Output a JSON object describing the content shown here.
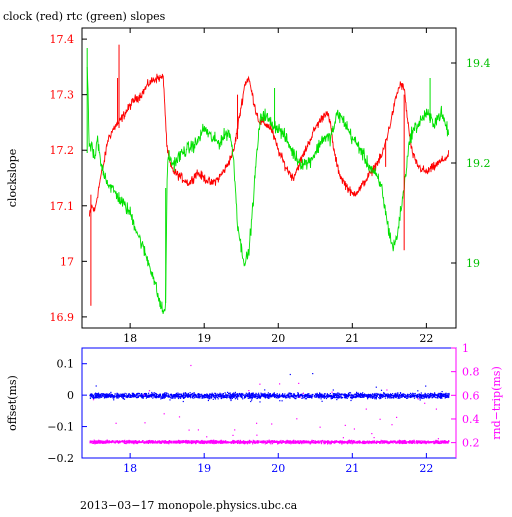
{
  "chart_data": [
    {
      "type": "line",
      "title": "clock (red) rtc (green) slopes",
      "ylabel": "clockslope",
      "xlim": [
        17.35,
        22.4
      ],
      "x_ticks": [
        "18",
        "19",
        "20",
        "21",
        "22"
      ],
      "y_left_lim": [
        16.88,
        17.42
      ],
      "y_left_ticks": [
        "16.9",
        "17",
        "17.1",
        "17.2",
        "17.3",
        "17.4"
      ],
      "y_right_lim": [
        18.87,
        19.47
      ],
      "y_right_ticks": [
        "19",
        "19.2",
        "19.4"
      ],
      "grid": false,
      "series": [
        {
          "name": "clock",
          "color": "#ff0000",
          "axis": "left",
          "x": [
            17.45,
            17.48,
            17.52,
            17.56,
            17.6,
            17.65,
            17.7,
            17.78,
            17.85,
            17.95,
            18.05,
            18.15,
            18.25,
            18.35,
            18.45,
            18.48,
            18.5,
            18.55,
            18.6,
            18.7,
            18.8,
            18.9,
            19.0,
            19.1,
            19.2,
            19.3,
            19.4,
            19.5,
            19.55,
            19.6,
            19.65,
            19.7,
            19.75,
            19.8,
            19.9,
            20.0,
            20.1,
            20.2,
            20.3,
            20.4,
            20.5,
            20.6,
            20.65,
            20.7,
            20.75,
            20.8,
            20.85,
            20.9,
            21.0,
            21.1,
            21.2,
            21.3,
            21.4,
            21.5,
            21.6,
            21.65,
            21.7,
            21.75,
            21.8,
            21.85,
            21.9,
            22.0,
            22.1,
            22.2,
            22.3
          ],
          "y": [
            17.08,
            17.1,
            17.09,
            17.12,
            17.15,
            17.18,
            17.22,
            17.24,
            17.25,
            17.27,
            17.29,
            17.3,
            17.32,
            17.33,
            17.33,
            17.25,
            17.2,
            17.17,
            17.16,
            17.15,
            17.14,
            17.16,
            17.15,
            17.14,
            17.15,
            17.17,
            17.2,
            17.28,
            17.32,
            17.33,
            17.3,
            17.27,
            17.25,
            17.25,
            17.24,
            17.2,
            17.17,
            17.15,
            17.18,
            17.21,
            17.24,
            17.26,
            17.27,
            17.25,
            17.2,
            17.17,
            17.15,
            17.14,
            17.12,
            17.13,
            17.15,
            17.17,
            17.19,
            17.24,
            17.3,
            17.32,
            17.31,
            17.25,
            17.2,
            17.18,
            17.17,
            17.16,
            17.17,
            17.18,
            17.19
          ]
        },
        {
          "name": "rtc",
          "color": "#00e000",
          "axis": "right",
          "x": [
            17.42,
            17.45,
            17.48,
            17.52,
            17.56,
            17.6,
            17.65,
            17.7,
            17.75,
            17.8,
            17.9,
            18.0,
            18.1,
            18.2,
            18.3,
            18.4,
            18.45,
            18.48,
            18.5,
            18.52,
            18.55,
            18.6,
            18.7,
            18.8,
            18.9,
            19.0,
            19.1,
            19.2,
            19.3,
            19.35,
            19.4,
            19.45,
            19.5,
            19.55,
            19.6,
            19.65,
            19.7,
            19.75,
            19.8,
            19.9,
            20.0,
            20.1,
            20.2,
            20.3,
            20.4,
            20.5,
            20.6,
            20.7,
            20.75,
            20.8,
            20.9,
            21.0,
            21.1,
            21.2,
            21.3,
            21.4,
            21.45,
            21.5,
            21.55,
            21.6,
            21.65,
            21.7,
            21.75,
            21.8,
            21.9,
            22.0,
            22.1,
            22.2,
            22.3
          ],
          "y": [
            19.4,
            19.22,
            19.24,
            19.2,
            19.25,
            19.2,
            19.18,
            19.16,
            19.15,
            19.14,
            19.12,
            19.1,
            19.06,
            19.02,
            18.98,
            18.92,
            18.9,
            18.92,
            19.18,
            19.22,
            19.2,
            19.2,
            19.22,
            19.23,
            19.24,
            19.27,
            19.25,
            19.24,
            19.26,
            19.26,
            19.2,
            19.08,
            19.03,
            19.0,
            19.02,
            19.1,
            19.2,
            19.28,
            19.3,
            19.28,
            19.27,
            19.25,
            19.22,
            19.2,
            19.2,
            19.22,
            19.25,
            19.25,
            19.27,
            19.3,
            19.28,
            19.25,
            19.23,
            19.2,
            19.18,
            19.15,
            19.1,
            19.06,
            19.03,
            19.05,
            19.1,
            19.15,
            19.22,
            19.26,
            19.28,
            19.3,
            19.28,
            19.3,
            19.26
          ]
        }
      ],
      "spikes": [
        {
          "x": 17.47,
          "from": 17.12,
          "to": 16.92,
          "color": "#ff0000",
          "axis": "left"
        },
        {
          "x": 17.85,
          "from": 17.24,
          "to": 17.39,
          "color": "#ff0000",
          "axis": "left"
        },
        {
          "x": 17.83,
          "from": 17.25,
          "to": 17.33,
          "color": "#ff0000",
          "axis": "left"
        },
        {
          "x": 19.45,
          "from": 17.22,
          "to": 17.3,
          "color": "#ff0000",
          "axis": "left"
        },
        {
          "x": 21.7,
          "from": 17.3,
          "to": 17.02,
          "color": "#ff0000",
          "axis": "left"
        },
        {
          "x": 21.45,
          "from": 17.17,
          "to": 17.22,
          "color": "#ff0000",
          "axis": "left"
        },
        {
          "x": 17.42,
          "from": 19.22,
          "to": 19.43,
          "color": "#00e000",
          "axis": "right"
        },
        {
          "x": 18.48,
          "from": 18.92,
          "to": 19.15,
          "color": "#00e000",
          "axis": "right"
        },
        {
          "x": 19.95,
          "from": 19.27,
          "to": 19.35,
          "color": "#00e000",
          "axis": "right"
        },
        {
          "x": 22.05,
          "from": 19.28,
          "to": 19.37,
          "color": "#00e000",
          "axis": "right"
        }
      ]
    },
    {
      "type": "scatter",
      "ylabel_left": "offset(ms)",
      "ylabel_right": "rnd−trip(ms)",
      "xlim": [
        17.35,
        22.4
      ],
      "x_ticks": [
        "18",
        "19",
        "20",
        "21",
        "22"
      ],
      "y_left_lim": [
        -0.2,
        0.15
      ],
      "y_left_ticks": [
        "−0.2",
        "−0.1",
        "0",
        "0.1"
      ],
      "y_right_lim": [
        0.07,
        1.0
      ],
      "y_right_ticks": [
        "0.2",
        "0.4",
        "0.6",
        "0.8",
        "1"
      ],
      "grid": false,
      "series": [
        {
          "name": "offset",
          "color": "#0000ff",
          "axis": "left",
          "x_range": [
            17.45,
            22.3
          ],
          "center": 0.0,
          "spread": 0.012,
          "outlier_range": [
            -0.02,
            0.12
          ]
        },
        {
          "name": "rnd-trip",
          "color": "#ff00ff",
          "axis": "right",
          "x_range": [
            17.45,
            22.3
          ],
          "center": 0.21,
          "spread": 0.018,
          "outlier_range": [
            0.22,
            0.98
          ]
        }
      ]
    }
  ],
  "footer": "2013−03−17 monopole.physics.ubc.ca"
}
